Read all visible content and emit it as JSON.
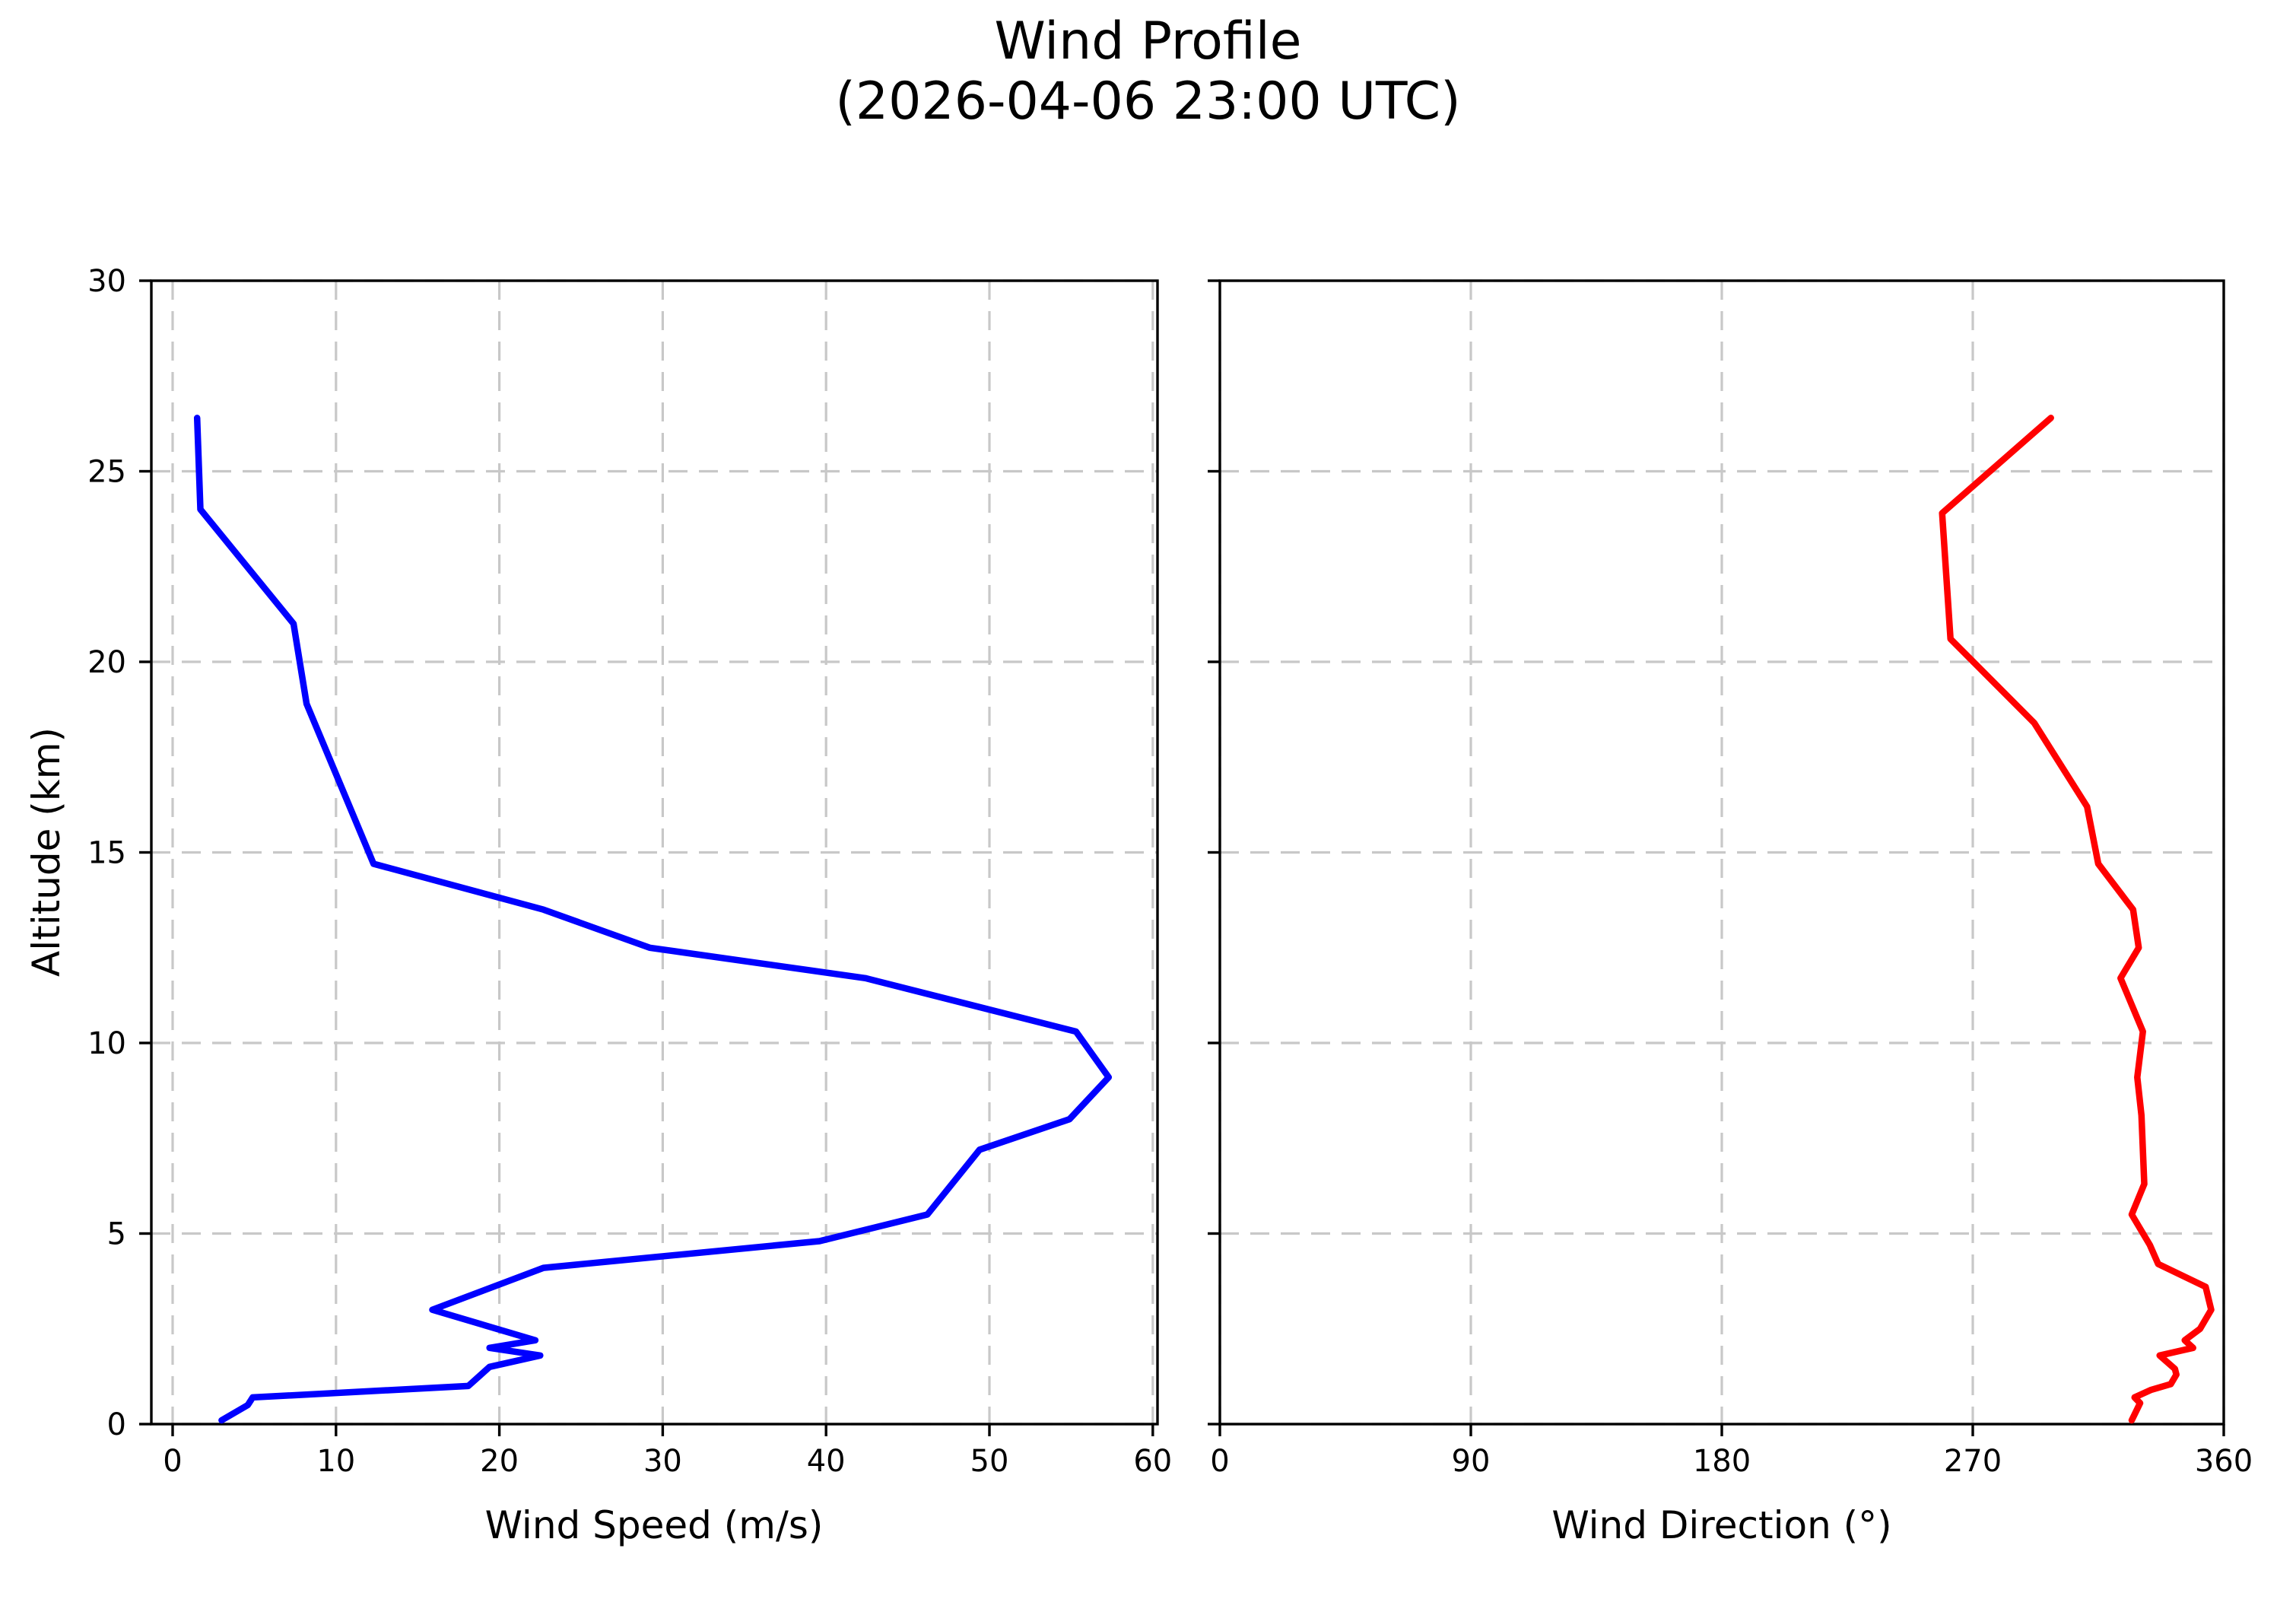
{
  "title": {
    "line1": "Wind Profile",
    "line2": "(2026-04-06 23:00 UTC)"
  },
  "colors": {
    "wind_speed_line": "#0000ff",
    "wind_direction_line": "#ff0000",
    "grid": "#c8c8c8",
    "axis": "#000000",
    "background": "#ffffff"
  },
  "chart_data": [
    {
      "type": "line",
      "title": "Wind Profile (2026-04-06 23:00 UTC)",
      "xlabel": "Wind Speed (m/s)",
      "ylabel": "Altitude (km)",
      "xlim": [
        0,
        60
      ],
      "ylim": [
        0,
        30
      ],
      "xticks": [
        0,
        10,
        20,
        30,
        40,
        50,
        60
      ],
      "yticks": [
        0,
        5,
        10,
        15,
        20,
        25,
        30
      ],
      "grid": true,
      "legend_position": "none",
      "series": [
        {
          "name": "wind_speed",
          "color": "#0000ff",
          "points": [
            [
              3.0,
              0.1
            ],
            [
              4.6,
              0.5
            ],
            [
              4.9,
              0.7
            ],
            [
              18.1,
              1.0
            ],
            [
              19.4,
              1.5
            ],
            [
              22.5,
              1.8
            ],
            [
              19.4,
              2.0
            ],
            [
              22.2,
              2.2
            ],
            [
              15.9,
              3.0
            ],
            [
              22.7,
              4.1
            ],
            [
              39.6,
              4.8
            ],
            [
              46.2,
              5.5
            ],
            [
              49.4,
              7.2
            ],
            [
              54.9,
              8.0
            ],
            [
              57.3,
              9.1
            ],
            [
              55.3,
              10.3
            ],
            [
              42.4,
              11.7
            ],
            [
              29.2,
              12.5
            ],
            [
              22.7,
              13.5
            ],
            [
              12.3,
              14.7
            ],
            [
              8.2,
              18.9
            ],
            [
              7.4,
              21.0
            ],
            [
              1.7,
              24.0
            ],
            [
              1.5,
              26.4
            ]
          ]
        }
      ]
    },
    {
      "type": "line",
      "title": "Wind Profile (2026-04-06 23:00 UTC)",
      "xlabel": "Wind Direction (°)",
      "ylabel": "Altitude (km)",
      "xlim": [
        0,
        360
      ],
      "ylim": [
        0,
        30
      ],
      "xticks": [
        0,
        90,
        180,
        270,
        360
      ],
      "yticks": [
        0,
        5,
        10,
        15,
        20,
        25,
        30
      ],
      "ytick_labels_shown": false,
      "grid": true,
      "legend_position": "none",
      "series": [
        {
          "name": "wind_direction",
          "color": "#ff0000",
          "points": [
            [
              327,
              0.1
            ],
            [
              330,
              0.55
            ],
            [
              328,
              0.7
            ],
            [
              334,
              0.9
            ],
            [
              341,
              1.05
            ],
            [
              343,
              1.3
            ],
            [
              342.5,
              1.45
            ],
            [
              337,
              1.8
            ],
            [
              349,
              2.0
            ],
            [
              346,
              2.2
            ],
            [
              351.5,
              2.5
            ],
            [
              355.5,
              3.0
            ],
            [
              353.5,
              3.6
            ],
            [
              336.5,
              4.2
            ],
            [
              333.5,
              4.7
            ],
            [
              327,
              5.5
            ],
            [
              331.5,
              6.3
            ],
            [
              330.5,
              8.1
            ],
            [
              329,
              9.1
            ],
            [
              331,
              10.3
            ],
            [
              323,
              11.7
            ],
            [
              329.5,
              12.5
            ],
            [
              327.5,
              13.5
            ],
            [
              315,
              14.7
            ],
            [
              311,
              16.2
            ],
            [
              292,
              18.4
            ],
            [
              262,
              20.6
            ],
            [
              259,
              23.9
            ],
            [
              298,
              26.4
            ]
          ]
        }
      ]
    }
  ]
}
